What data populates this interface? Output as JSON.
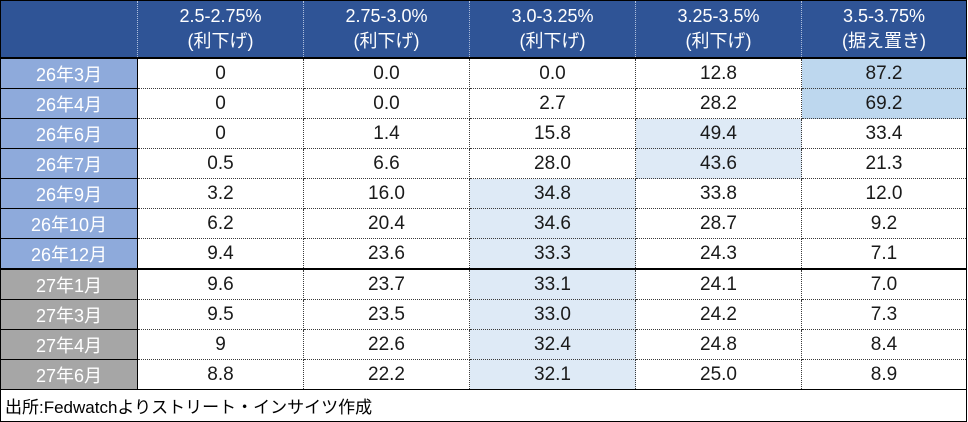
{
  "colors": {
    "header_bg": "#2F5496",
    "row_label_2026": "#8EAADB",
    "row_label_2027": "#A6A6A6",
    "highlight_strong": "#BDD7EE",
    "highlight_light": "#DEEAF6"
  },
  "table": {
    "columns": [
      {
        "range": "2.5-2.75%",
        "note": "(利下げ)"
      },
      {
        "range": "2.75-3.0%",
        "note": "(利下げ)"
      },
      {
        "range": "3.0-3.25%",
        "note": "(利下げ)"
      },
      {
        "range": "3.25-3.5%",
        "note": "(利下げ)"
      },
      {
        "range": "3.5-3.75%",
        "note": "(据え置き)"
      }
    ],
    "rows": [
      {
        "label": "26年3月",
        "group": "y26",
        "values": [
          "0",
          "0.0",
          "0.0",
          "12.8",
          "87.2"
        ],
        "highlight_col": 4,
        "highlight_level": "strong"
      },
      {
        "label": "26年4月",
        "group": "y26",
        "values": [
          "0",
          "0.0",
          "2.7",
          "28.2",
          "69.2"
        ],
        "highlight_col": 4,
        "highlight_level": "strong"
      },
      {
        "label": "26年6月",
        "group": "y26",
        "values": [
          "0",
          "1.4",
          "15.8",
          "49.4",
          "33.4"
        ],
        "highlight_col": 3,
        "highlight_level": "light"
      },
      {
        "label": "26年7月",
        "group": "y26",
        "values": [
          "0.5",
          "6.6",
          "28.0",
          "43.6",
          "21.3"
        ],
        "highlight_col": 3,
        "highlight_level": "light"
      },
      {
        "label": "26年9月",
        "group": "y26",
        "values": [
          "3.2",
          "16.0",
          "34.8",
          "33.8",
          "12.0"
        ],
        "highlight_col": 2,
        "highlight_level": "light"
      },
      {
        "label": "26年10月",
        "group": "y26",
        "values": [
          "6.2",
          "20.4",
          "34.6",
          "28.7",
          "9.2"
        ],
        "highlight_col": 2,
        "highlight_level": "light"
      },
      {
        "label": "26年12月",
        "group": "y26",
        "values": [
          "9.4",
          "23.6",
          "33.3",
          "24.3",
          "7.1"
        ],
        "highlight_col": 2,
        "highlight_level": "light"
      },
      {
        "label": "27年1月",
        "group": "y27",
        "values": [
          "9.6",
          "23.7",
          "33.1",
          "24.1",
          "7.0"
        ],
        "highlight_col": 2,
        "highlight_level": "light"
      },
      {
        "label": "27年3月",
        "group": "y27",
        "values": [
          "9.5",
          "23.5",
          "33.0",
          "24.2",
          "7.3"
        ],
        "highlight_col": 2,
        "highlight_level": "light"
      },
      {
        "label": "27年4月",
        "group": "y27",
        "values": [
          "9",
          "22.6",
          "32.4",
          "24.8",
          "8.4"
        ],
        "highlight_col": 2,
        "highlight_level": "light"
      },
      {
        "label": "27年6月",
        "group": "y27",
        "values": [
          "8.8",
          "22.2",
          "32.1",
          "25.0",
          "8.9"
        ],
        "highlight_col": 2,
        "highlight_level": "light"
      }
    ],
    "source": "出所:Fedwatchよりストリート・インサイツ作成"
  },
  "chart_data": {
    "type": "table",
    "title": "",
    "columns": [
      "",
      "2.5-2.75% (利下げ)",
      "2.75-3.0% (利下げ)",
      "3.0-3.25% (利下げ)",
      "3.25-3.5% (利下げ)",
      "3.5-3.75% (据え置き)"
    ],
    "rows": [
      [
        "26年3月",
        0,
        0.0,
        0.0,
        12.8,
        87.2
      ],
      [
        "26年4月",
        0,
        0.0,
        2.7,
        28.2,
        69.2
      ],
      [
        "26年6月",
        0,
        1.4,
        15.8,
        49.4,
        33.4
      ],
      [
        "26年7月",
        0.5,
        6.6,
        28.0,
        43.6,
        21.3
      ],
      [
        "26年9月",
        3.2,
        16.0,
        34.8,
        33.8,
        12.0
      ],
      [
        "26年10月",
        6.2,
        20.4,
        34.6,
        28.7,
        9.2
      ],
      [
        "26年12月",
        9.4,
        23.6,
        33.3,
        24.3,
        7.1
      ],
      [
        "27年1月",
        9.6,
        23.7,
        33.1,
        24.1,
        7.0
      ],
      [
        "27年3月",
        9.5,
        23.5,
        33.0,
        24.2,
        7.3
      ],
      [
        "27年4月",
        9,
        22.6,
        32.4,
        24.8,
        8.4
      ],
      [
        "27年6月",
        8.8,
        22.2,
        32.1,
        25.0,
        8.9
      ]
    ],
    "annotations": [
      "出所:Fedwatchよりストリート・インサイツ作成"
    ],
    "notes": "max probability per row is shaded; >50% shaded stronger"
  }
}
